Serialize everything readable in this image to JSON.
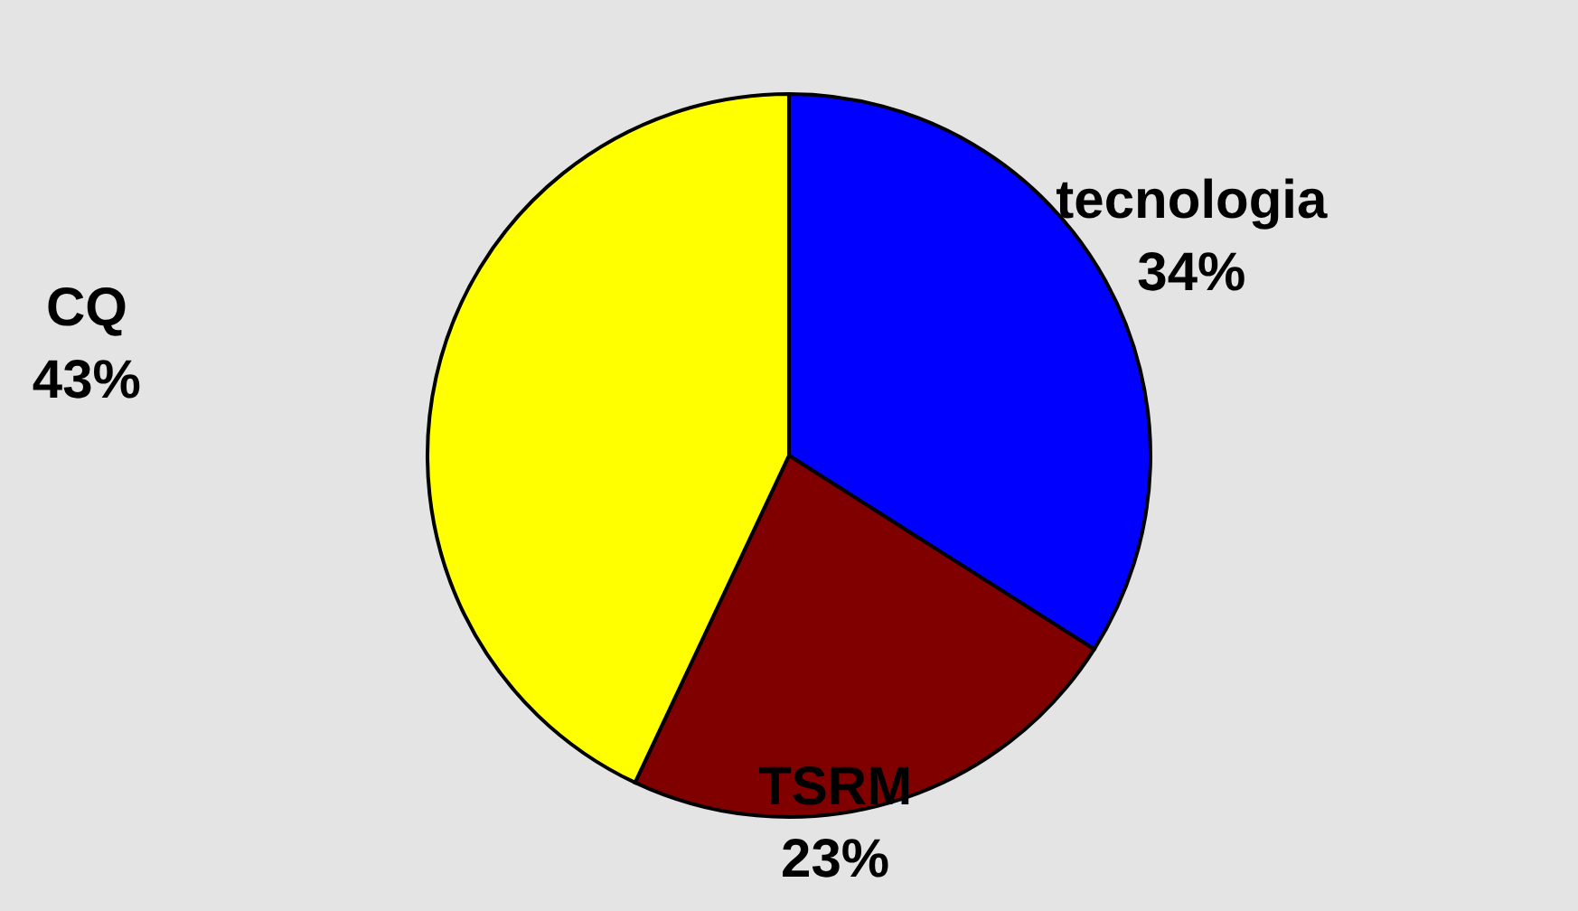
{
  "chart_data": {
    "type": "pie",
    "categories": [
      "tecnologia",
      "TSRM",
      "CQ"
    ],
    "values": [
      34,
      23,
      43
    ],
    "colors": [
      "#0000ff",
      "#800000",
      "#ffff00"
    ],
    "value_labels": [
      "34%",
      "23%",
      "43%"
    ]
  }
}
